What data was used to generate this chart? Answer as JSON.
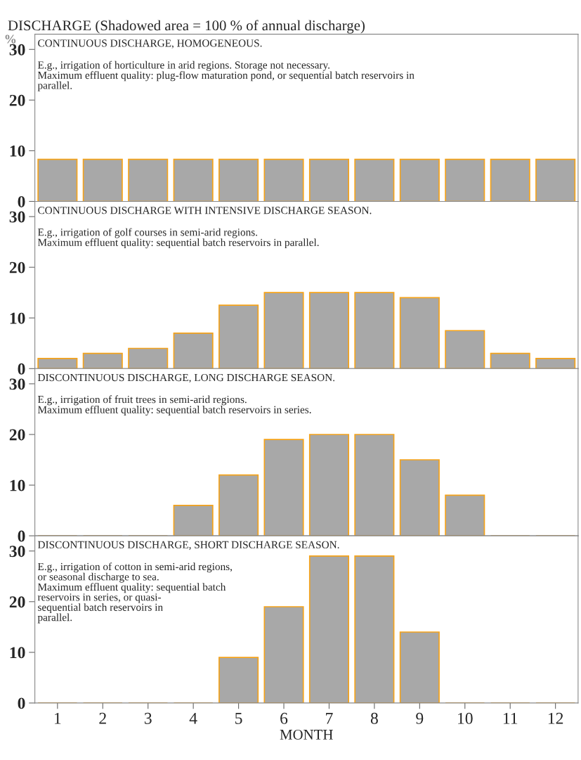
{
  "chart_data": [
    {
      "type": "bar",
      "title": "DISCHARGE (Shadowed area = 100 % of annual discharge)",
      "subtitle": "CONTINUOUS DISCHARGE, HOMOGENEOUS.",
      "ylabel": "%",
      "annotations": [
        "E.g., irrigation of horticulture in arid regions. Storage not necessary.\nMaximum effluent quality: plug-flow maturation pond, or sequential batch reservoirs in\nparallel."
      ],
      "categories": [
        "1",
        "2",
        "3",
        "4",
        "5",
        "6",
        "7",
        "8",
        "9",
        "10",
        "11",
        "12"
      ],
      "series": [
        {
          "color": "#a8a8a8",
          "values": [
            8.3,
            8.3,
            8.3,
            8.3,
            8.3,
            8.3,
            8.3,
            8.3,
            8.3,
            8.3,
            8.3,
            8.3
          ]
        }
      ],
      "ylim": [
        0,
        33
      ],
      "yticks": [
        0,
        10,
        20,
        30
      ],
      "tick_labels": "y",
      "grid": false
    },
    {
      "type": "bar",
      "subtitle": "CONTINUOUS DISCHARGE WITH INTENSIVE DISCHARGE SEASON.",
      "annotations": [
        "E.g., irrigation of golf courses in semi-arid regions.\nMaximum effluent quality: sequential batch reservoirs in parallel."
      ],
      "categories": [
        "1",
        "2",
        "3",
        "4",
        "5",
        "6",
        "7",
        "8",
        "9",
        "10",
        "11",
        "12"
      ],
      "series": [
        {
          "color": "#a8a8a8",
          "values": [
            2,
            3,
            4,
            7,
            12.5,
            15,
            15,
            15,
            14,
            7.5,
            3,
            2
          ]
        }
      ],
      "ylim": [
        0,
        33
      ],
      "yticks": [
        0,
        10,
        20,
        30
      ],
      "tick_labels": "y",
      "grid": false
    },
    {
      "type": "bar",
      "subtitle": "DISCONTINUOUS DISCHARGE, LONG DISCHARGE SEASON.",
      "annotations": [
        "E.g., irrigation of fruit trees in semi-arid regions.\nMaximum effluent quality: sequential batch reservoirs in series."
      ],
      "categories": [
        "1",
        "2",
        "3",
        "4",
        "5",
        "6",
        "7",
        "8",
        "9",
        "10",
        "11",
        "12"
      ],
      "series": [
        {
          "colors": [
            "#f5a31a",
            "#f5a31a",
            "#f5a31a",
            "#a8a8a8",
            "#a8a8a8",
            "#a8a8a8",
            "#a8a8a8",
            "#a8a8a8",
            "#a8a8a8",
            "#a8a8a8",
            "#f5a31a",
            "#f5a31a"
          ],
          "values": [
            0,
            0,
            0,
            6,
            12,
            19,
            20,
            20,
            15,
            8,
            0,
            0
          ]
        }
      ],
      "ylim": [
        0,
        33
      ],
      "yticks": [
        0,
        10,
        20,
        30
      ],
      "tick_labels": "y",
      "grid": false
    },
    {
      "type": "bar",
      "subtitle": "DISCONTINUOUS DISCHARGE, SHORT DISCHARGE SEASON.",
      "xlabel": "MONTH",
      "annotations": [
        "E.g., irrigation of cotton in semi-arid regions,\nor seasonal discharge to sea.\nMaximum effluent quality: sequential batch\nreservoirs in series, or quasi-\nsequential batch reservoirs in\nparallel."
      ],
      "categories": [
        "1",
        "2",
        "3",
        "4",
        "5",
        "6",
        "7",
        "8",
        "9",
        "10",
        "11",
        "12"
      ],
      "series": [
        {
          "colors": [
            "#f5a31a",
            "#f5a31a",
            "#f5a31a",
            "#f5a31a",
            "#a8a8a8",
            "#a8a8a8",
            "#a8a8a8",
            "#a8a8a8",
            "#a8a8a8",
            "#f5a31a",
            "#f5a31a",
            "#f5a31a"
          ],
          "values": [
            0,
            0,
            0,
            0,
            9,
            19,
            29,
            29,
            14,
            0,
            0,
            0
          ]
        }
      ],
      "ylim": [
        0,
        33
      ],
      "yticks": [
        0,
        10,
        20,
        30
      ],
      "grid": false
    }
  ]
}
